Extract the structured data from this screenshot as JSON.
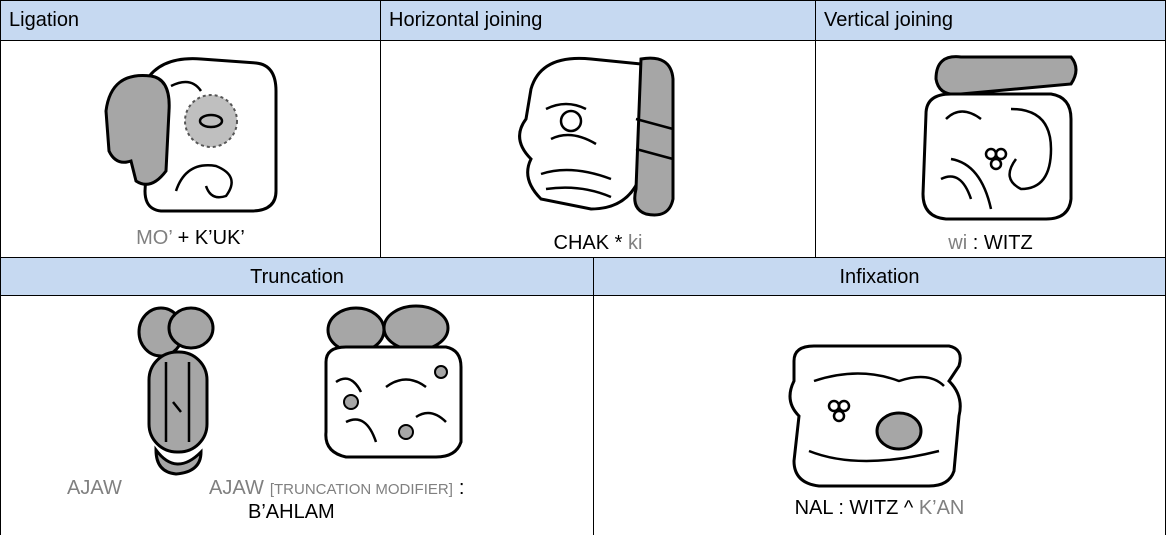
{
  "table": {
    "row1": [
      {
        "header": "Ligation",
        "caption": [
          "MO’",
          "+ K’UK’"
        ]
      },
      {
        "header": "Horizontal joining",
        "caption": [
          "CHAK *",
          "ki"
        ]
      },
      {
        "header": "Vertical joining",
        "caption": [
          "wi",
          ": WITZ"
        ]
      }
    ],
    "row2": [
      {
        "header": "Truncation",
        "caption": [
          "AJAW",
          "AJAW",
          "[TRUNCATION MODIFIER]",
          ":",
          "B’AHLAM"
        ]
      },
      {
        "header": "Infixation",
        "caption": [
          "NAL : WITZ ^",
          "K’AN"
        ]
      }
    ]
  }
}
